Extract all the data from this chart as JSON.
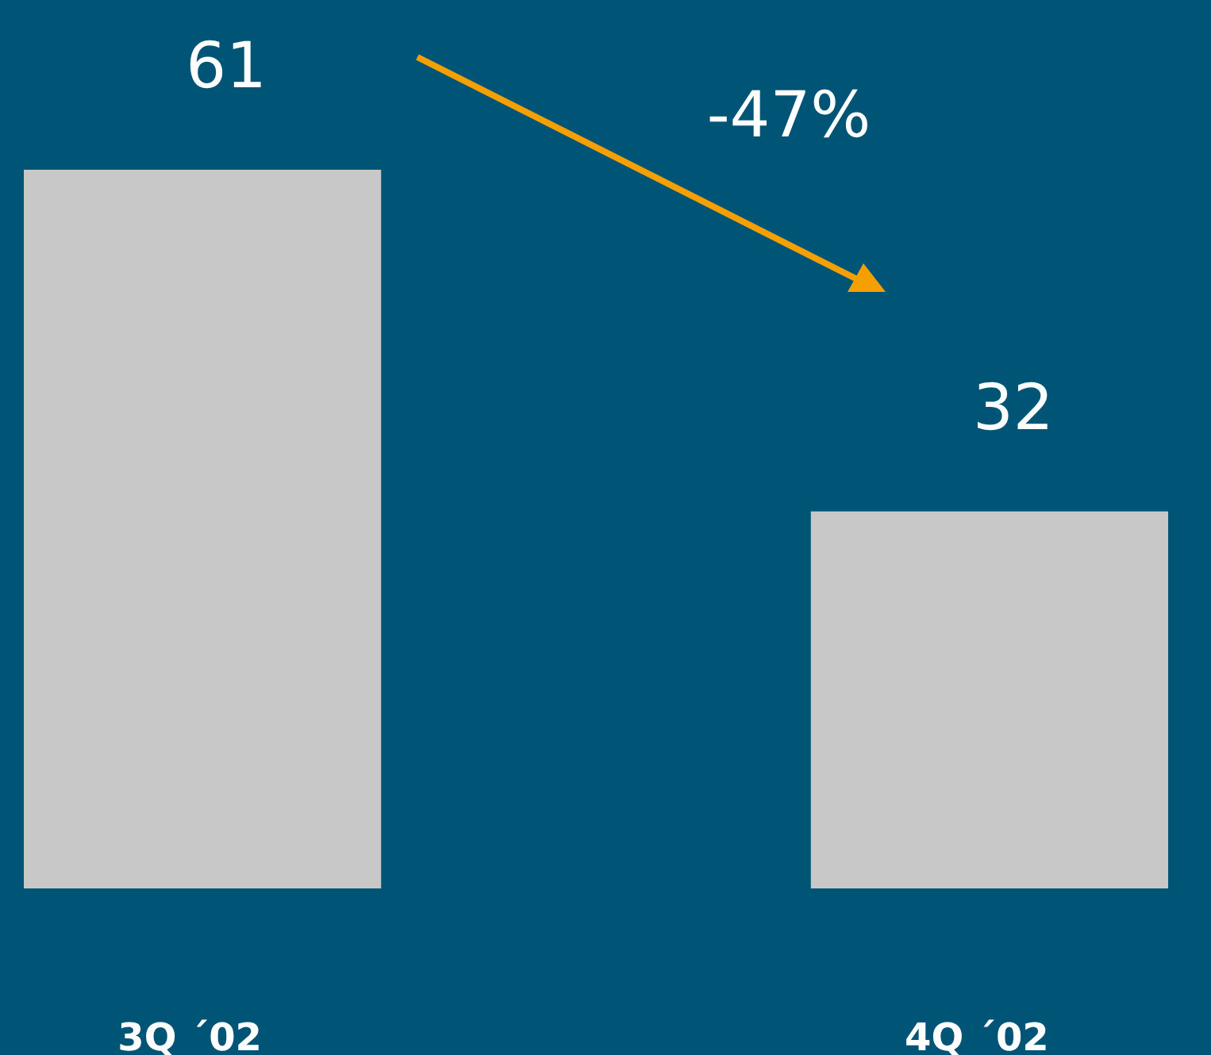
{
  "chart_data": {
    "type": "bar",
    "categories": [
      "3Q ´02",
      "4Q ´02"
    ],
    "values": [
      61,
      32
    ],
    "color": "#c8c8c8",
    "data_labels": true,
    "tick_labels": "x",
    "annotations": [
      "-47%"
    ]
  }
}
